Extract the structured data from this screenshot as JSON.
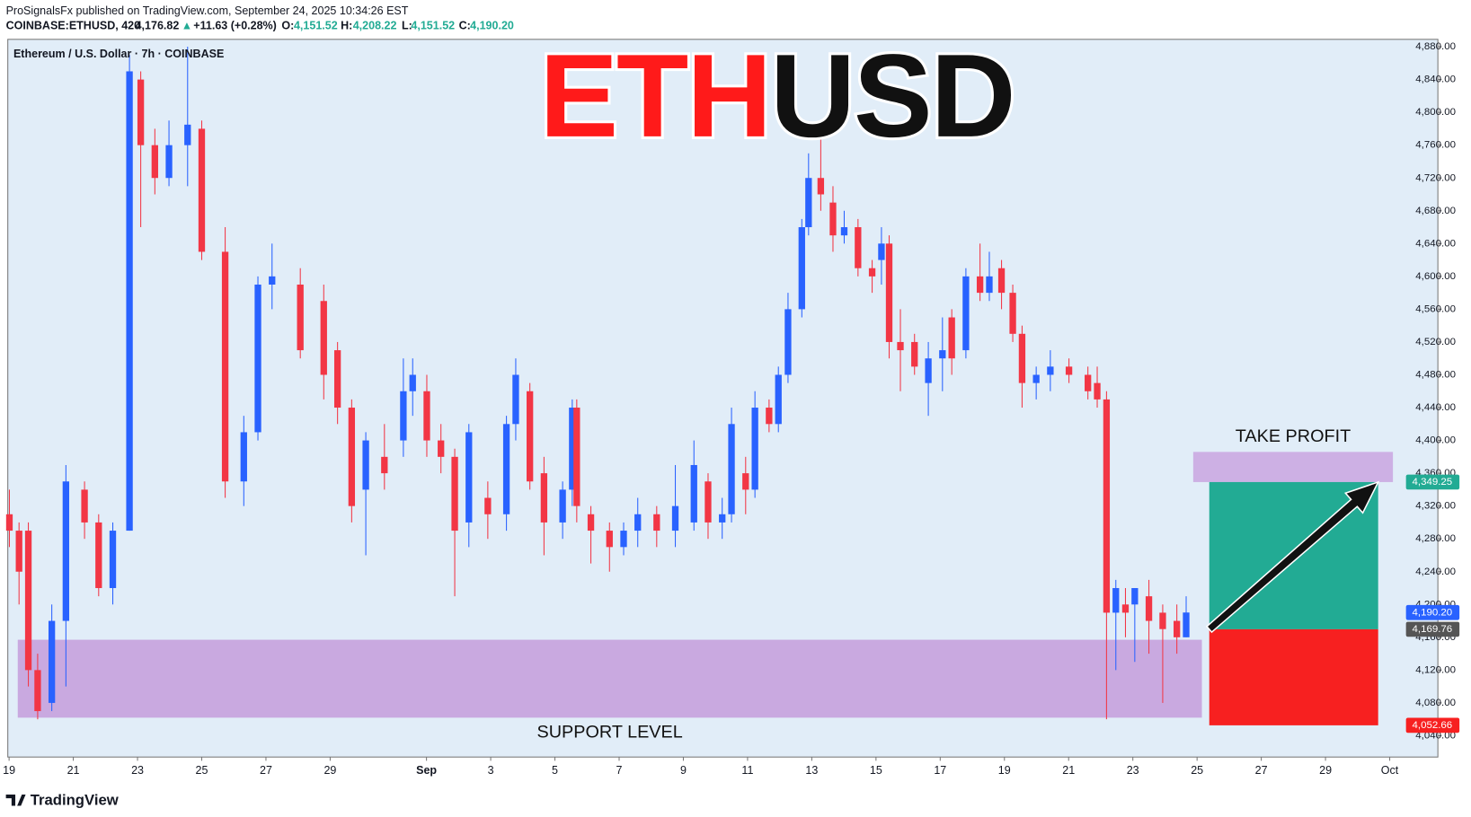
{
  "header": {
    "publisher": "ProSignalsFx published on TradingView.com, September 24, 2025 10:34:26 EST",
    "symbol": "COINBASE:ETHUSD, 420",
    "last": "4,176.82",
    "arrow": "▲",
    "change": "+11.63 (+0.28%)",
    "o_label": "O:",
    "o": "4,151.52",
    "h_label": "H:",
    "h": "4,208.22",
    "l_label": "L:",
    "l": "4,151.52",
    "c_label": "C:",
    "c": "4,190.20"
  },
  "footer": {
    "brand": "TradingView"
  },
  "chart_data": {
    "type": "candlestick",
    "legend": "Ethereum / U.S. Dollar · 7h · COINBASE",
    "title_parts": [
      {
        "text": "ETH",
        "color": "#ff1a1a"
      },
      {
        "text": "USD",
        "color": "#111111"
      }
    ],
    "up_color": "#2962ff",
    "down_color": "#f23645",
    "x": [
      19.01,
      19.31,
      19.6,
      19.89,
      20.33,
      20.77,
      21.35,
      21.79,
      22.23,
      22.75,
      23.1,
      23.54,
      23.98,
      24.56,
      25.0,
      25.73,
      26.31,
      26.75,
      27.19,
      28.07,
      28.8,
      29.23,
      29.67,
      30.11,
      30.69,
      31.28,
      31.57,
      32.01,
      32.45,
      32.88,
      33.32,
      33.91,
      34.49,
      34.78,
      35.22,
      35.66,
      36.24,
      36.54,
      36.68,
      37.12,
      37.7,
      38.14,
      38.58,
      39.17,
      39.75,
      40.33,
      40.77,
      41.21,
      41.5,
      41.94,
      42.23,
      42.67,
      42.96,
      43.26,
      43.69,
      43.9,
      44.28,
      44.66,
      45.01,
      45.44,
      45.88,
      46.17,
      46.41,
      46.76,
      47.2,
      47.63,
      48.07,
      48.36,
      48.8,
      49.24,
      49.53,
      49.91,
      50.26,
      50.55,
      50.99,
      51.43,
      52.01,
      52.6,
      52.89,
      53.18,
      53.47,
      53.77,
      54.06,
      54.5,
      54.93,
      55.37,
      55.66
    ],
    "open": [
      4310,
      4290,
      4290,
      4120,
      4080,
      4180,
      4340,
      4300,
      4220,
      4290,
      4840,
      4760,
      4720,
      4760,
      4780,
      4630,
      4350,
      4410,
      4590,
      4590,
      4570,
      4510,
      4440,
      4340,
      4380,
      4400,
      4460,
      4460,
      4400,
      4380,
      4300,
      4330,
      4310,
      4420,
      4460,
      4360,
      4300,
      4340,
      4440,
      4310,
      4290,
      4270,
      4290,
      4310,
      4290,
      4300,
      4350,
      4300,
      4310,
      4360,
      4340,
      4440,
      4420,
      4480,
      4560,
      4660,
      4720,
      4690,
      4650,
      4660,
      4610,
      4620,
      4640,
      4520,
      4520,
      4470,
      4500,
      4550,
      4510,
      4600,
      4580,
      4610,
      4580,
      4530,
      4470,
      4480,
      4490,
      4480,
      4470,
      4450,
      4190,
      4200,
      4200,
      4210,
      4190,
      4180,
      4160
    ],
    "high": [
      4340,
      4300,
      4300,
      4140,
      4200,
      4370,
      4350,
      4310,
      4300,
      4870,
      4850,
      4780,
      4790,
      4880,
      4790,
      4660,
      4430,
      4600,
      4640,
      4610,
      4590,
      4520,
      4450,
      4410,
      4420,
      4500,
      4500,
      4480,
      4420,
      4390,
      4420,
      4350,
      4430,
      4500,
      4470,
      4380,
      4350,
      4450,
      4450,
      4320,
      4300,
      4300,
      4330,
      4320,
      4370,
      4400,
      4360,
      4330,
      4440,
      4380,
      4460,
      4450,
      4490,
      4580,
      4670,
      4750,
      4770,
      4710,
      4680,
      4670,
      4620,
      4660,
      4650,
      4560,
      4530,
      4520,
      4550,
      4560,
      4610,
      4640,
      4630,
      4620,
      4590,
      4540,
      4490,
      4510,
      4500,
      4490,
      4490,
      4460,
      4230,
      4220,
      4220,
      4230,
      4200,
      4200,
      4210
    ],
    "low": [
      4270,
      4200,
      4100,
      4060,
      4070,
      4100,
      4280,
      4210,
      4200,
      4290,
      4660,
      4700,
      4710,
      4710,
      4620,
      4330,
      4320,
      4400,
      4560,
      4500,
      4450,
      4420,
      4300,
      4260,
      4340,
      4380,
      4430,
      4380,
      4360,
      4210,
      4270,
      4280,
      4290,
      4400,
      4340,
      4260,
      4280,
      4320,
      4300,
      4250,
      4240,
      4260,
      4270,
      4270,
      4270,
      4290,
      4280,
      4280,
      4300,
      4310,
      4330,
      4410,
      4410,
      4470,
      4550,
      4650,
      4680,
      4630,
      4640,
      4600,
      4580,
      4590,
      4500,
      4460,
      4480,
      4430,
      4460,
      4480,
      4500,
      4570,
      4570,
      4560,
      4520,
      4440,
      4450,
      4460,
      4470,
      4450,
      4440,
      4060,
      4120,
      4160,
      4130,
      4140,
      4080,
      4140,
      4160
    ],
    "close": [
      4290,
      4240,
      4120,
      4070,
      4180,
      4350,
      4300,
      4220,
      4290,
      4850,
      4760,
      4720,
      4760,
      4785,
      4630,
      4350,
      4410,
      4590,
      4600,
      4510,
      4480,
      4440,
      4320,
      4400,
      4360,
      4460,
      4480,
      4400,
      4380,
      4290,
      4410,
      4310,
      4420,
      4480,
      4350,
      4300,
      4340,
      4440,
      4320,
      4290,
      4270,
      4290,
      4310,
      4290,
      4320,
      4370,
      4300,
      4310,
      4420,
      4340,
      4440,
      4420,
      4480,
      4560,
      4660,
      4720,
      4700,
      4650,
      4660,
      4610,
      4600,
      4640,
      4520,
      4510,
      4490,
      4500,
      4510,
      4500,
      4600,
      4580,
      4600,
      4580,
      4530,
      4470,
      4480,
      4490,
      4480,
      4460,
      4450,
      4190,
      4220,
      4190,
      4220,
      4180,
      4170,
      4160,
      4190.2
    ],
    "xlim": [
      18.96,
      63.5
    ],
    "xticks": [
      19,
      21,
      23,
      25,
      27,
      29,
      {
        "value": 32,
        "label": "Sep"
      },
      {
        "value": 34,
        "label": "3"
      },
      {
        "value": 36,
        "label": "5"
      },
      {
        "value": 38,
        "label": "7"
      },
      {
        "value": 40,
        "label": "9"
      },
      {
        "value": 42,
        "label": "11"
      },
      {
        "value": 44,
        "label": "13"
      },
      {
        "value": 46,
        "label": "15"
      },
      {
        "value": 48,
        "label": "17"
      },
      {
        "value": 50,
        "label": "19"
      },
      {
        "value": 52,
        "label": "21"
      },
      {
        "value": 54,
        "label": "23"
      },
      {
        "value": 56,
        "label": "25"
      },
      {
        "value": 58,
        "label": "27"
      },
      {
        "value": 60,
        "label": "29"
      },
      {
        "value": 62,
        "label": "Oct"
      }
    ],
    "ylim": [
      4014,
      4889
    ],
    "yticks": [
      {
        "value": 4040,
        "label": "4,040.00"
      },
      {
        "value": 4080,
        "label": "4,080.00"
      },
      {
        "value": 4120,
        "label": "4,120.00"
      },
      {
        "value": 4160,
        "label": "4,160.00"
      },
      {
        "value": 4200,
        "label": "4,200.00"
      },
      {
        "value": 4240,
        "label": "4,240.00"
      },
      {
        "value": 4280,
        "label": "4,280.00"
      },
      {
        "value": 4320,
        "label": "4,320.00"
      },
      {
        "value": 4360,
        "label": "4,360.00"
      },
      {
        "value": 4400,
        "label": "4,400.00"
      },
      {
        "value": 4440,
        "label": "4,440.00"
      },
      {
        "value": 4480,
        "label": "4,480.00"
      },
      {
        "value": 4520,
        "label": "4,520.00"
      },
      {
        "value": 4560,
        "label": "4,560.00"
      },
      {
        "value": 4600,
        "label": "4,600.00"
      },
      {
        "value": 4640,
        "label": "4,640.00"
      },
      {
        "value": 4680,
        "label": "4,680.00"
      },
      {
        "value": 4720,
        "label": "4,720.00"
      },
      {
        "value": 4760,
        "label": "4,760.00"
      },
      {
        "value": 4800,
        "label": "4,800.00"
      },
      {
        "value": 4840,
        "label": "4,840.00"
      },
      {
        "value": 4880,
        "label": "4,880.00"
      }
    ],
    "zones": [
      {
        "label": "SUPPORT LEVEL",
        "x": [
          19.27,
          56.15
        ],
        "y": [
          4062,
          4157
        ],
        "color": "#c9a9e0"
      },
      {
        "label": "TAKE PROFIT",
        "x": [
          55.88,
          62.1
        ],
        "y": [
          4349.25,
          4386
        ],
        "color": "#cdb0e4"
      },
      {
        "x": [
          56.38,
          61.64
        ],
        "y": [
          4169.76,
          4349.25
        ],
        "color": "#22ab94"
      },
      {
        "x": [
          56.38,
          61.64
        ],
        "y": [
          4052.66,
          4169.76
        ],
        "color": "#f72020"
      }
    ],
    "price_labels": [
      {
        "value": 4349.25,
        "label": "4,349.25",
        "color": "#22ab94"
      },
      {
        "value": 4190.2,
        "label": "4,190.20",
        "color": "#2962ff"
      },
      {
        "value": 4169.76,
        "label": "4,169.76",
        "color": "#555555"
      },
      {
        "value": 4052.66,
        "label": "4,052.66",
        "color": "#f72020"
      }
    ]
  }
}
